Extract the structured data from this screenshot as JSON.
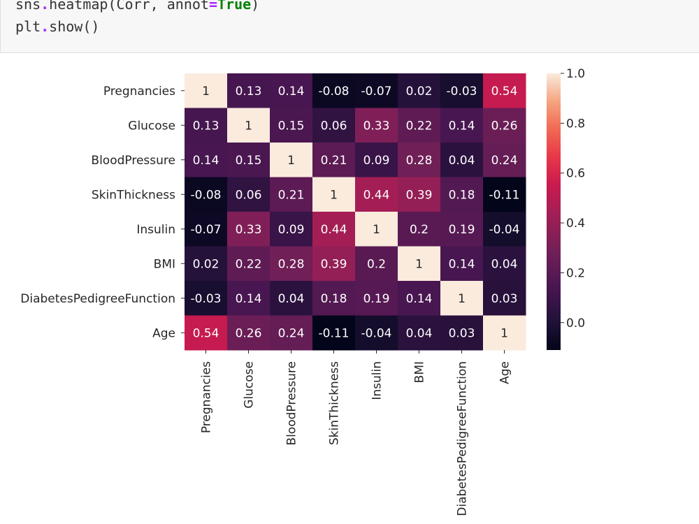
{
  "code": {
    "line1": {
      "pre": "sns",
      "dot": ".",
      "call": "heatmap(Corr, annot",
      "eq": "=",
      "kw": "True",
      "close": ")"
    },
    "line2": {
      "pre": "plt",
      "dot": ".",
      "call": "show()"
    }
  },
  "chart_data": {
    "type": "heatmap",
    "title": "",
    "row_labels": [
      "Pregnancies",
      "Glucose",
      "BloodPressure",
      "SkinThickness",
      "Insulin",
      "BMI",
      "DiabetesPedigreeFunction",
      "Age"
    ],
    "col_labels": [
      "Pregnancies",
      "Glucose",
      "BloodPressure",
      "SkinThickness",
      "Insulin",
      "BMI",
      "DiabetesPedigreeFunction",
      "Age"
    ],
    "values": [
      [
        1,
        0.13,
        0.14,
        -0.08,
        -0.07,
        0.02,
        -0.03,
        0.54
      ],
      [
        0.13,
        1,
        0.15,
        0.06,
        0.33,
        0.22,
        0.14,
        0.26
      ],
      [
        0.14,
        0.15,
        1,
        0.21,
        0.09,
        0.28,
        0.04,
        0.24
      ],
      [
        -0.08,
        0.06,
        0.21,
        1,
        0.44,
        0.39,
        0.18,
        -0.11
      ],
      [
        -0.07,
        0.33,
        0.09,
        0.44,
        1,
        0.2,
        0.19,
        -0.04
      ],
      [
        0.02,
        0.22,
        0.28,
        0.39,
        0.2,
        1,
        0.14,
        0.04
      ],
      [
        -0.03,
        0.14,
        0.04,
        0.18,
        0.19,
        0.14,
        1,
        0.03
      ],
      [
        0.54,
        0.26,
        0.24,
        -0.11,
        -0.04,
        0.04,
        0.03,
        1
      ]
    ],
    "annotations": [
      [
        "1",
        "0.13",
        "0.14",
        "-0.08",
        "-0.07",
        "0.02",
        "-0.03",
        "0.54"
      ],
      [
        "0.13",
        "1",
        "0.15",
        "0.06",
        "0.33",
        "0.22",
        "0.14",
        "0.26"
      ],
      [
        "0.14",
        "0.15",
        "1",
        "0.21",
        "0.09",
        "0.28",
        "0.04",
        "0.24"
      ],
      [
        "-0.08",
        "0.06",
        "0.21",
        "1",
        "0.44",
        "0.39",
        "0.18",
        "-0.11"
      ],
      [
        "-0.07",
        "0.33",
        "0.09",
        "0.44",
        "1",
        "0.2",
        "0.19",
        "-0.04"
      ],
      [
        "0.02",
        "0.22",
        "0.28",
        "0.39",
        "0.2",
        "1",
        "0.14",
        "0.04"
      ],
      [
        "-0.03",
        "0.14",
        "0.04",
        "0.18",
        "0.19",
        "0.14",
        "1",
        "0.03"
      ],
      [
        "0.54",
        "0.26",
        "0.24",
        "-0.11",
        "-0.04",
        "0.04",
        "0.03",
        "1"
      ]
    ],
    "colorbar": {
      "vmin": -0.11,
      "vmax": 1.0,
      "ticks": [
        0.0,
        0.2,
        0.4,
        0.6,
        0.8,
        1.0
      ],
      "tick_labels": [
        "0.0",
        "0.2",
        "0.4",
        "0.6",
        "0.8",
        "1.0"
      ]
    },
    "colormap": "rocket"
  }
}
